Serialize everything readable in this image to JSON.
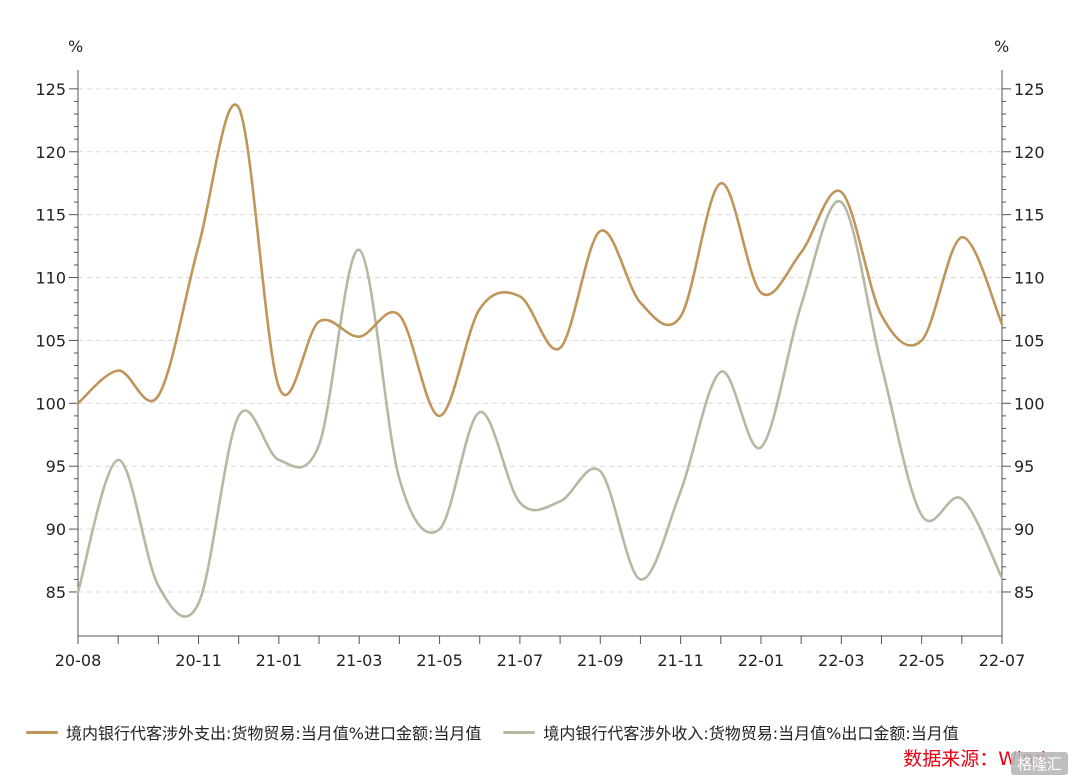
{
  "chart_data": {
    "type": "line",
    "x_labels": [
      "20-08",
      "20-09",
      "20-10",
      "20-11",
      "20-12",
      "21-01",
      "21-02",
      "21-03",
      "21-04",
      "21-05",
      "21-06",
      "21-07",
      "21-08",
      "21-09",
      "21-10",
      "21-11",
      "21-12",
      "22-01",
      "22-02",
      "22-03",
      "22-04",
      "22-05",
      "22-06",
      "22-07"
    ],
    "x_tick_labels": [
      "20-08",
      "20-11",
      "21-01",
      "21-03",
      "21-05",
      "21-07",
      "21-09",
      "21-11",
      "22-01",
      "22-03",
      "22-05",
      "22-07"
    ],
    "series": [
      {
        "name": "境内银行代客涉外支出:货物贸易:当月值%进口金额:当月值",
        "color": "#c0955a",
        "values": [
          100.0,
          102.6,
          100.6,
          112.5,
          123.5,
          101.3,
          106.5,
          105.3,
          107.0,
          99.0,
          107.5,
          108.5,
          104.4,
          113.7,
          108.0,
          106.9,
          117.5,
          108.8,
          112.0,
          116.8,
          107.0,
          105.0,
          113.2,
          106.3
        ]
      },
      {
        "name": "境内银行代客涉外收入:货物贸易:当月值%出口金额:当月值",
        "color": "#b5b9a2",
        "values": [
          85.0,
          95.5,
          85.5,
          84.1,
          99.0,
          95.5,
          96.7,
          112.2,
          94.0,
          90.0,
          99.3,
          92.1,
          92.2,
          94.6,
          86.0,
          93.0,
          102.5,
          96.5,
          107.8,
          116.0,
          103.0,
          91.1,
          92.4,
          86.1
        ]
      }
    ],
    "yticks": [
      85,
      90,
      95,
      100,
      105,
      110,
      115,
      120,
      125
    ],
    "left_y_unit": "%",
    "right_y_unit": "%",
    "ylim": [
      81.5,
      126.5
    ],
    "grid": "horizontal-dashed",
    "legend": "bottom",
    "source": "数据来源：Wind",
    "watermark": "格隆汇"
  }
}
